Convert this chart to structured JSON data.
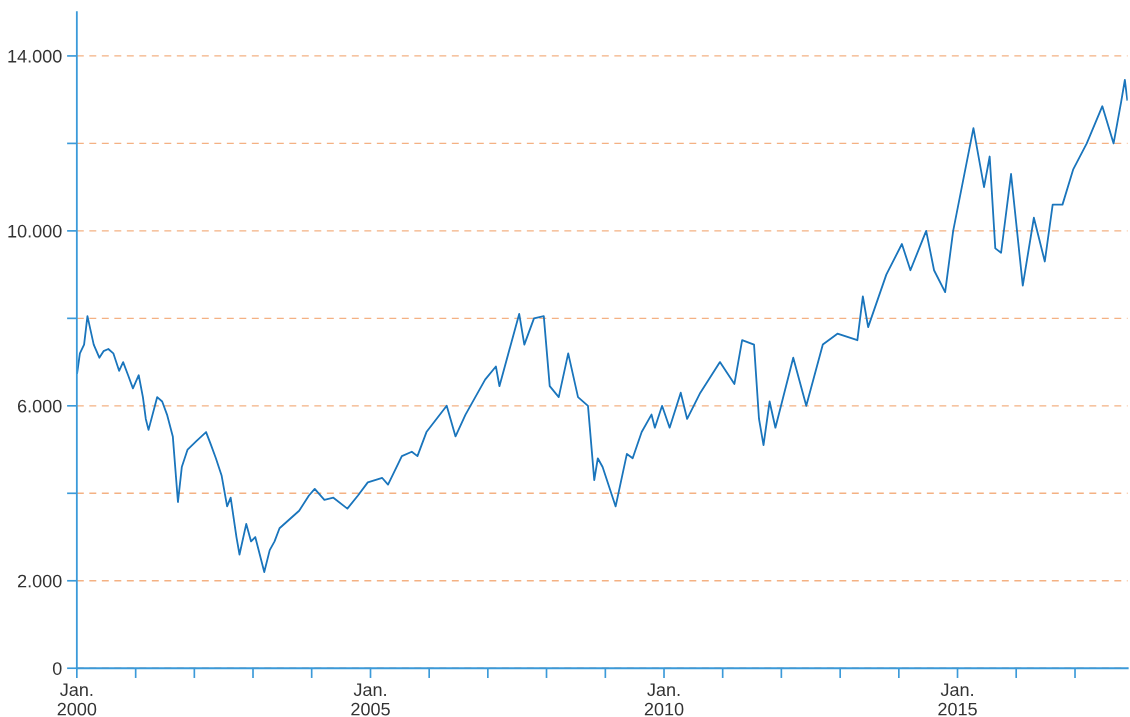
{
  "chart_data": {
    "type": "line",
    "x": [
      "2000-01-03",
      "2000-01-20",
      "2000-02-15",
      "2000-03-07",
      "2000-04-15",
      "2000-05-20",
      "2000-06-15",
      "2000-07-15",
      "2000-08-15",
      "2000-09-20",
      "2000-10-15",
      "2000-11-15",
      "2000-12-15",
      "2001-01-20",
      "2001-02-15",
      "2001-03-05",
      "2001-03-22",
      "2001-05-15",
      "2001-06-15",
      "2001-07-15",
      "2001-08-20",
      "2001-09-21",
      "2001-10-15",
      "2001-11-20",
      "2002-01-15",
      "2002-03-15",
      "2002-04-15",
      "2002-05-15",
      "2002-06-20",
      "2002-07-24",
      "2002-08-15",
      "2002-09-20",
      "2002-10-09",
      "2002-11-20",
      "2002-12-20",
      "2003-01-15",
      "2003-03-12",
      "2003-04-15",
      "2003-05-15",
      "2003-06-15",
      "2003-08-15",
      "2003-10-15",
      "2003-12-15",
      "2004-01-20",
      "2004-03-20",
      "2004-05-15",
      "2004-08-10",
      "2004-10-15",
      "2004-12-15",
      "2005-03-15",
      "2005-04-20",
      "2005-07-15",
      "2005-09-15",
      "2005-10-20",
      "2005-12-15",
      "2006-04-20",
      "2006-06-14",
      "2006-08-15",
      "2006-12-15",
      "2007-02-20",
      "2007-03-14",
      "2007-07-15",
      "2007-08-16",
      "2007-10-15",
      "2007-12-15",
      "2008-01-21",
      "2008-03-17",
      "2008-05-15",
      "2008-07-15",
      "2008-09-15",
      "2008-10-24",
      "2008-11-15",
      "2008-12-15",
      "2009-03-06",
      "2009-05-15",
      "2009-06-20",
      "2009-08-15",
      "2009-10-15",
      "2009-11-05",
      "2009-12-20",
      "2010-02-05",
      "2010-04-15",
      "2010-05-25",
      "2010-08-15",
      "2010-12-15",
      "2011-03-15",
      "2011-05-02",
      "2011-07-15",
      "2011-08-15",
      "2011-09-12",
      "2011-10-20",
      "2011-11-25",
      "2012-03-15",
      "2012-06-04",
      "2012-09-15",
      "2012-12-15",
      "2013-04-18",
      "2013-05-22",
      "2013-06-24",
      "2013-10-15",
      "2014-01-20",
      "2014-03-14",
      "2014-06-20",
      "2014-08-08",
      "2014-10-16",
      "2014-12-05",
      "2015-04-10",
      "2015-06-15",
      "2015-07-20",
      "2015-08-24",
      "2015-09-29",
      "2015-11-30",
      "2016-02-11",
      "2016-04-20",
      "2016-06-27",
      "2016-08-15",
      "2016-10-15",
      "2016-12-20",
      "2017-03-15",
      "2017-06-20",
      "2017-08-29",
      "2017-10-15",
      "2017-11-07",
      "2017-11-22"
    ],
    "series": [
      {
        "color": "#1a75bc",
        "values": [
          6750,
          7200,
          7400,
          8050,
          7400,
          7100,
          7250,
          7300,
          7200,
          6800,
          7000,
          6700,
          6400,
          6700,
          6200,
          5700,
          5450,
          6200,
          6100,
          5800,
          5300,
          3800,
          4600,
          5000,
          5200,
          5400,
          5100,
          4800,
          4400,
          3700,
          3900,
          3000,
          2600,
          3300,
          2900,
          3000,
          2200,
          2700,
          2900,
          3200,
          3400,
          3600,
          3950,
          4100,
          3850,
          3900,
          3650,
          3950,
          4250,
          4350,
          4200,
          4850,
          4950,
          4850,
          5400,
          6000,
          5300,
          5800,
          6600,
          6900,
          6450,
          8100,
          7400,
          8000,
          8050,
          6450,
          6200,
          7200,
          6200,
          6000,
          4300,
          4800,
          4600,
          3700,
          4900,
          4800,
          5400,
          5800,
          5500,
          6000,
          5500,
          6300,
          5700,
          6300,
          7000,
          6500,
          7500,
          7400,
          5700,
          5100,
          6100,
          5500,
          7100,
          6000,
          7400,
          7650,
          7500,
          8500,
          7800,
          9000,
          9700,
          9100,
          10000,
          9100,
          8600,
          10000,
          12350,
          11000,
          11700,
          9600,
          9500,
          11300,
          8750,
          10300,
          9300,
          10600,
          10600,
          11400,
          12000,
          12850,
          12000,
          12950,
          13450,
          13000
        ]
      }
    ],
    "xlim": [
      "2000-01-01",
      "2017-11-25"
    ],
    "xticks": [
      {
        "value": "2000-01-01",
        "label": "Jan.\n2000"
      },
      {
        "value": "2001-01-01",
        "label": null
      },
      {
        "value": "2002-01-01",
        "label": null
      },
      {
        "value": "2003-01-01",
        "label": null
      },
      {
        "value": "2004-01-01",
        "label": null
      },
      {
        "value": "2005-01-01",
        "label": "Jan.\n2005"
      },
      {
        "value": "2006-01-01",
        "label": null
      },
      {
        "value": "2007-01-01",
        "label": null
      },
      {
        "value": "2008-01-01",
        "label": null
      },
      {
        "value": "2009-01-01",
        "label": null
      },
      {
        "value": "2010-01-01",
        "label": "Jan.\n2010"
      },
      {
        "value": "2011-01-01",
        "label": null
      },
      {
        "value": "2012-01-01",
        "label": null
      },
      {
        "value": "2013-01-01",
        "label": null
      },
      {
        "value": "2014-01-01",
        "label": null
      },
      {
        "value": "2015-01-01",
        "label": "Jan.\n2015"
      },
      {
        "value": "2016-01-01",
        "label": null
      },
      {
        "value": "2017-01-01",
        "label": null
      }
    ],
    "ylim": [
      0,
      15000
    ],
    "yticks": [
      0,
      {
        "value": 2000,
        "label": "2.000"
      },
      {
        "value": 4000,
        "label": null
      },
      {
        "value": 6000,
        "label": "6.000"
      },
      {
        "value": 8000,
        "label": null
      },
      {
        "value": 10000,
        "label": "10.000"
      },
      {
        "value": 12000,
        "label": null
      },
      {
        "value": 14000,
        "label": "14.000"
      }
    ],
    "grid": "y",
    "line_style": "solid",
    "marker": "none"
  }
}
